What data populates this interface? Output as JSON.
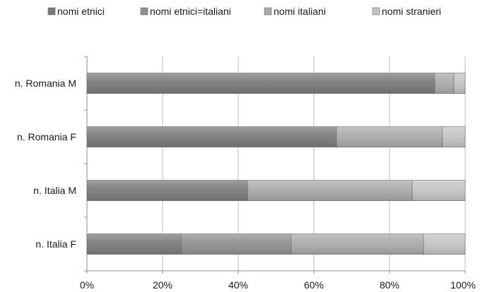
{
  "chart_data": {
    "type": "bar",
    "orientation": "horizontal",
    "stacked": true,
    "percent_stacked": true,
    "categories": [
      "n. Romania M",
      "n. Romania F",
      "n. Italia M",
      "n. Italia F"
    ],
    "series": [
      {
        "name": "nomi etnici",
        "values": [
          92,
          66,
          42.5,
          25
        ],
        "color": "#7a7a7a"
      },
      {
        "name": "nomi etnici=italiani",
        "values": [
          0,
          0,
          0,
          29
        ],
        "color": "#909090"
      },
      {
        "name": "nomi italiani",
        "values": [
          5,
          28,
          43.5,
          35
        ],
        "color": "#aaaaaa"
      },
      {
        "name": "nomi stranieri",
        "values": [
          3,
          6,
          14,
          11
        ],
        "color": "#c4c4c4"
      }
    ],
    "x_ticks": [
      "0%",
      "20%",
      "40%",
      "60%",
      "80%",
      "100%"
    ],
    "xlim": [
      0,
      100
    ],
    "grid": true,
    "legend_position": "top"
  }
}
